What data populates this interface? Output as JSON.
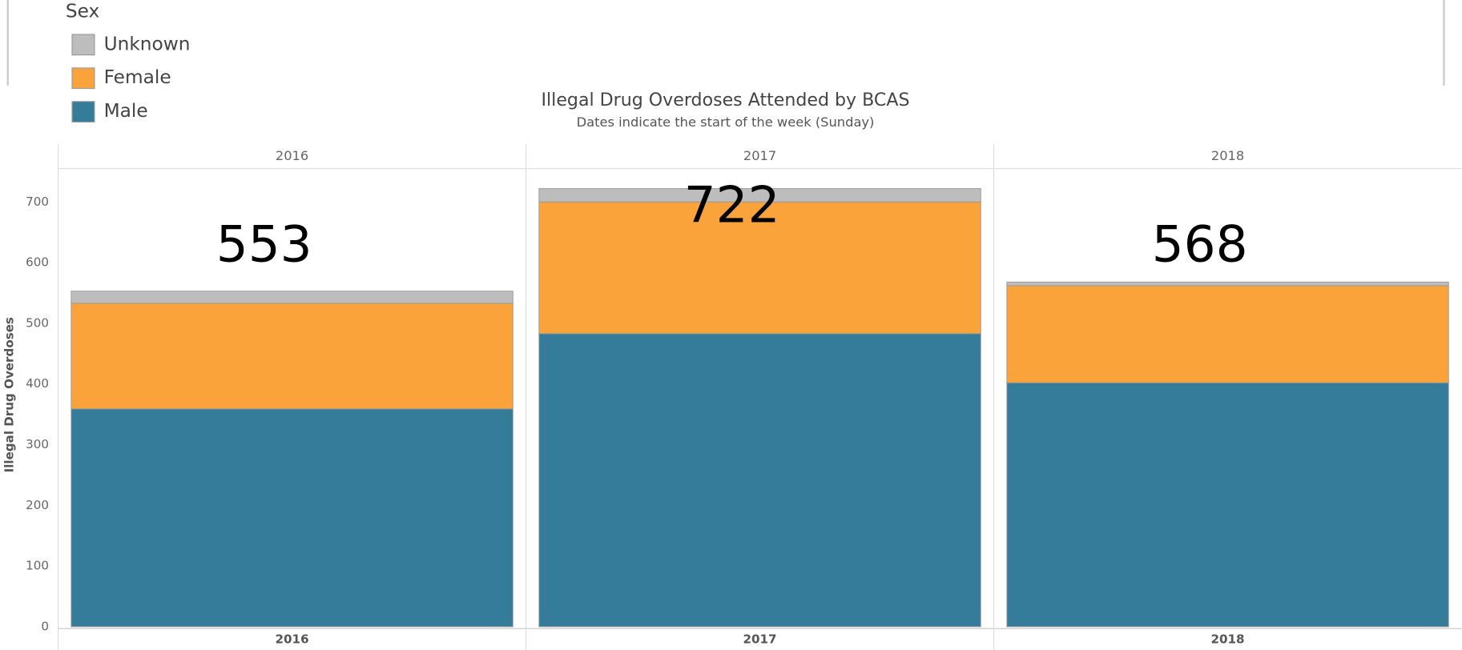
{
  "chart_data": {
    "type": "stacked-bar",
    "title": "Illegal Drug Overdoses Attended by BCAS",
    "subtitle": "Dates indicate the start of the week (Sunday)",
    "y_label": "Illegal Drug Overdoses",
    "legend_title": "Sex",
    "categories": [
      "2016",
      "2017",
      "2018"
    ],
    "series": [
      {
        "name": "Male",
        "color": "#347c99",
        "values": [
          359,
          483,
          402
        ]
      },
      {
        "name": "Female",
        "color": "#f9a33a",
        "values": [
          174,
          217,
          160
        ]
      },
      {
        "name": "Unknown",
        "color": "#bdbdbd",
        "values": [
          20,
          22,
          6
        ]
      }
    ],
    "totals": [
      553,
      722,
      568
    ],
    "ylim": [
      0,
      755
    ],
    "yticks": [
      0,
      100,
      200,
      300,
      400,
      500,
      600,
      700
    ],
    "grid": false
  }
}
